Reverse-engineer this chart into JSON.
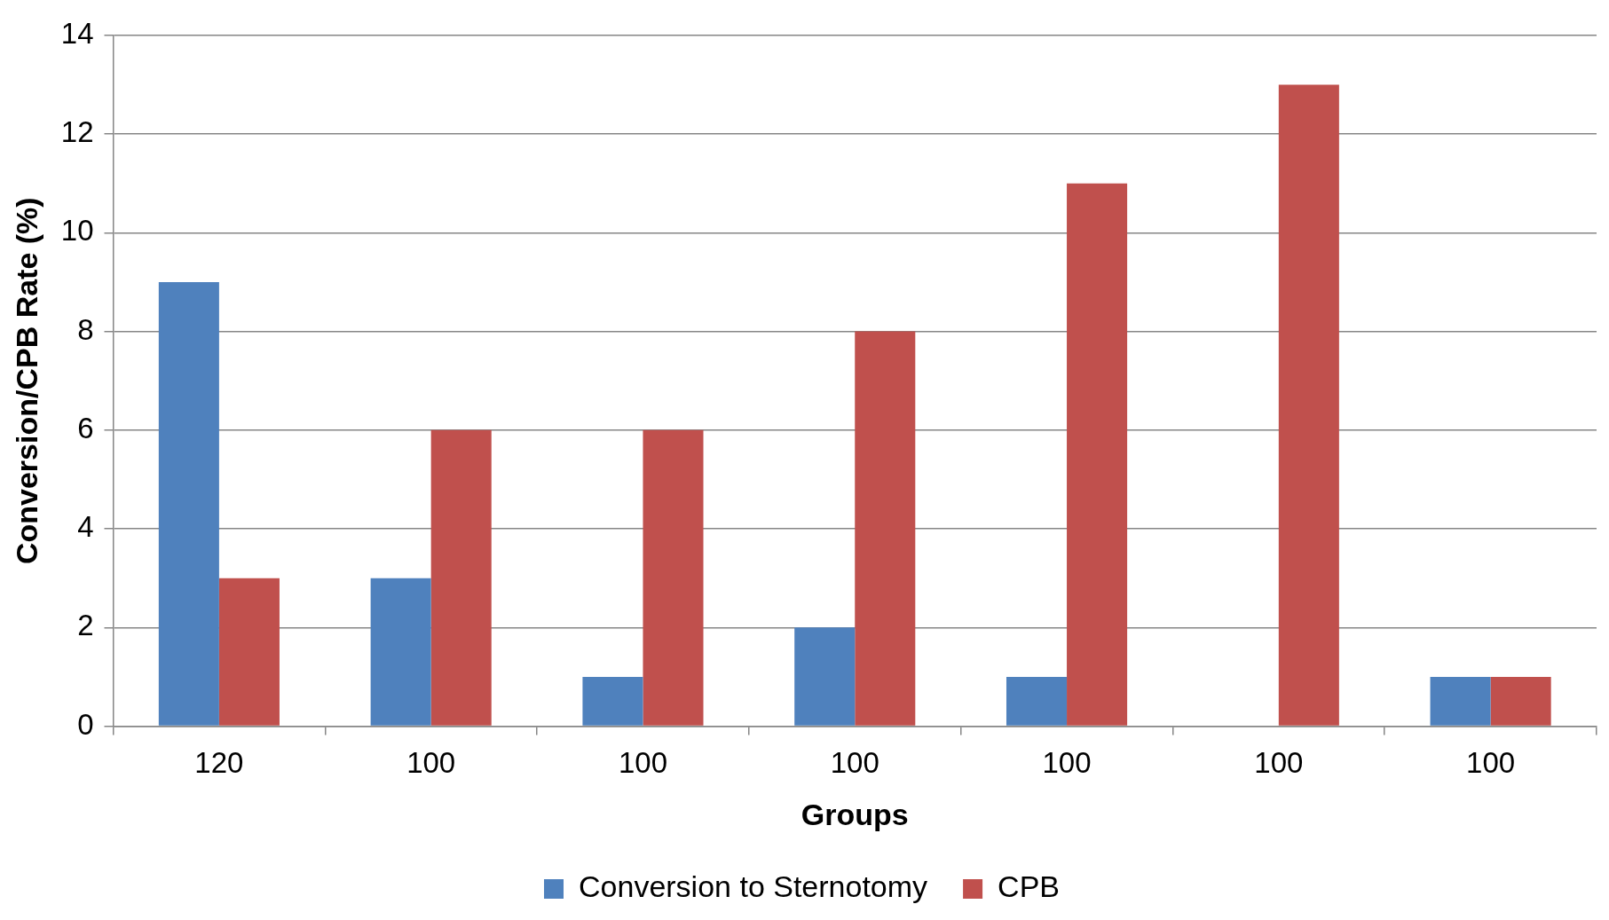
{
  "chart_data": {
    "type": "bar",
    "xlabel": "Groups",
    "ylabel": "Conversion/CPB Rate (%)",
    "categories": [
      "120",
      "100",
      "100",
      "100",
      "100",
      "100",
      "100"
    ],
    "series": [
      {
        "name": "Conversion to Sternotomy",
        "color": "#4f81bd",
        "values": [
          9,
          3,
          1,
          2,
          1,
          0,
          1
        ]
      },
      {
        "name": "CPB",
        "color": "#c0504d",
        "values": [
          3,
          6,
          6,
          8,
          11,
          13,
          1
        ]
      }
    ],
    "ylim": [
      0,
      14
    ],
    "yticks": [
      0,
      2,
      4,
      6,
      8,
      10,
      12,
      14
    ],
    "grid": "y",
    "legend": "bottom"
  }
}
